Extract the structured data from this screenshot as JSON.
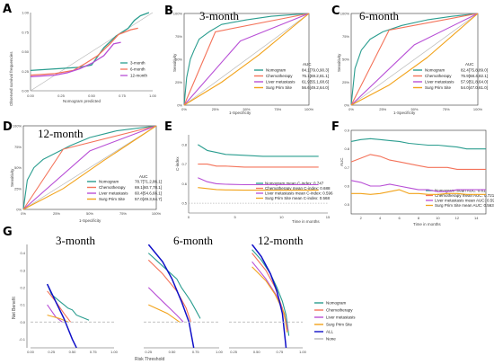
{
  "panel_labels": [
    "A",
    "B",
    "C",
    "D",
    "E",
    "F",
    "G"
  ],
  "colors": {
    "teal": "#2a9d8f",
    "salmon": "#f4735a",
    "magenta": "#b84fd6",
    "orange": "#f2a31b",
    "blue": "#1010c8",
    "grey": "#b8b8b8",
    "purple": "#8a2be2"
  },
  "chart_data": [
    {
      "id": "A",
      "type": "line",
      "xlabel": "Nomogram predicted",
      "ylabel": "Observed survival frequencies",
      "xlim": [
        0,
        1
      ],
      "ylim": [
        0,
        1
      ],
      "xticks": [
        "0.00",
        "0.25",
        "0.50",
        "0.75",
        "1.00"
      ],
      "yticks": [
        "0.00",
        "0.25",
        "0.50",
        "0.75",
        "1.00"
      ],
      "legend_position": "right",
      "series": [
        {
          "name": "3-month",
          "color": "teal",
          "x": [
            0.0,
            0.2,
            0.4,
            0.5,
            0.6,
            0.7,
            0.8,
            0.85,
            0.9,
            0.97
          ],
          "y": [
            0.26,
            0.28,
            0.3,
            0.33,
            0.55,
            0.7,
            0.8,
            0.9,
            0.96,
            1.0
          ]
        },
        {
          "name": "6-month",
          "color": "salmon",
          "x": [
            0.0,
            0.2,
            0.35,
            0.45,
            0.55,
            0.65,
            0.72,
            0.82,
            0.88
          ],
          "y": [
            0.2,
            0.22,
            0.26,
            0.35,
            0.45,
            0.6,
            0.72,
            0.78,
            0.8
          ]
        },
        {
          "name": "12-month",
          "color": "magenta",
          "x": [
            0.0,
            0.2,
            0.3,
            0.4,
            0.5,
            0.6,
            0.68,
            0.74
          ],
          "y": [
            0.18,
            0.2,
            0.23,
            0.28,
            0.35,
            0.45,
            0.6,
            0.62
          ]
        }
      ]
    },
    {
      "id": "B",
      "type": "line",
      "title": "3-month",
      "xlabel": "1-Specificity",
      "ylabel": "Sensitivity",
      "xticks": [
        "0%",
        "25%",
        "50%",
        "75%",
        "100%"
      ],
      "yticks": [
        "0%",
        "25%",
        "50%",
        "75%",
        "100%"
      ],
      "legend_header": "AUC",
      "series": [
        {
          "name": "Nomogram",
          "auc": "84.1[79.0,90.3]",
          "color": "teal",
          "x": [
            0,
            0.02,
            0.05,
            0.08,
            0.12,
            0.2,
            0.3,
            0.5,
            0.7,
            1
          ],
          "y": [
            0,
            0.3,
            0.5,
            0.6,
            0.72,
            0.8,
            0.88,
            0.93,
            0.97,
            1
          ]
        },
        {
          "name": "Chemotherapy",
          "auc": "75.1[69.2,81.1]",
          "color": "salmon",
          "x": [
            0,
            0.25,
            1
          ],
          "y": [
            0,
            0.8,
            1
          ]
        },
        {
          "name": "Liver metastasis",
          "auc": "61.9[55.1,68.6]",
          "color": "magenta",
          "x": [
            0,
            0.45,
            1
          ],
          "y": [
            0,
            0.7,
            1
          ]
        },
        {
          "name": "Surg Prim Site",
          "auc": "56.6[49.2,64.0]",
          "color": "orange",
          "x": [
            0,
            0.3,
            0.6,
            1
          ],
          "y": [
            0,
            0.25,
            0.55,
            1
          ]
        }
      ]
    },
    {
      "id": "C",
      "type": "line",
      "title": "6-month",
      "xlabel": "1-Specificity",
      "ylabel": "Sensitivity",
      "xticks": [
        "0%",
        "25%",
        "50%",
        "75%",
        "100%"
      ],
      "yticks": [
        "0%",
        "25%",
        "50%",
        "75%",
        "100%"
      ],
      "legend_header": "AUC",
      "series": [
        {
          "name": "Nomogram",
          "auc": "82.4[75.8,89.0]",
          "color": "teal",
          "x": [
            0,
            0.03,
            0.08,
            0.15,
            0.25,
            0.4,
            0.6,
            0.8,
            1
          ],
          "y": [
            0,
            0.4,
            0.6,
            0.72,
            0.8,
            0.87,
            0.93,
            0.97,
            1
          ]
        },
        {
          "name": "Chemotherapy",
          "auc": "75.9[68.4,82.1]",
          "color": "salmon",
          "x": [
            0,
            0.3,
            1
          ],
          "y": [
            0,
            0.82,
            1
          ]
        },
        {
          "name": "Liver metastasis",
          "auc": "57.9[51.8,64.0]",
          "color": "magenta",
          "x": [
            0,
            0.5,
            1
          ],
          "y": [
            0,
            0.66,
            1
          ]
        },
        {
          "name": "Surg Prim Site",
          "auc": "54.0[47.0,61.0]",
          "color": "orange",
          "x": [
            0,
            0.3,
            0.6,
            1
          ],
          "y": [
            0,
            0.22,
            0.52,
            1
          ]
        }
      ]
    },
    {
      "id": "D",
      "type": "line",
      "title": "12-month",
      "xlabel": "1-Specificity",
      "ylabel": "Sensitivity",
      "xticks": [
        "0%",
        "25%",
        "50%",
        "75%",
        "100%"
      ],
      "yticks": [
        "0%",
        "25%",
        "50%",
        "75%",
        "100%"
      ],
      "legend_header": "AUC",
      "series": [
        {
          "name": "Nomogram",
          "auc": "78.7[71.2,86.1]",
          "color": "teal",
          "x": [
            0,
            0.03,
            0.08,
            0.15,
            0.25,
            0.35,
            0.5,
            0.7,
            1
          ],
          "y": [
            0,
            0.35,
            0.5,
            0.6,
            0.68,
            0.76,
            0.86,
            0.94,
            1
          ]
        },
        {
          "name": "Chemotherapy",
          "auc": "69.1[60.7,78.1]",
          "color": "salmon",
          "x": [
            0,
            0.3,
            1
          ],
          "y": [
            0,
            0.72,
            1
          ]
        },
        {
          "name": "Liver metastasis",
          "auc": "60.4[54.6,66.1]",
          "color": "magenta",
          "x": [
            0,
            0.5,
            1
          ],
          "y": [
            0,
            0.7,
            1
          ]
        },
        {
          "name": "Surg Prim Site",
          "auc": "57.0[49.3,64.7]",
          "color": "orange",
          "x": [
            0,
            0.3,
            0.6,
            1
          ],
          "y": [
            0,
            0.25,
            0.58,
            1
          ]
        }
      ]
    },
    {
      "id": "E",
      "type": "line",
      "xlabel": "Time in months",
      "ylabel": "C-index",
      "xlim": [
        0,
        15
      ],
      "ylim": [
        0.45,
        0.85
      ],
      "xticks": [
        "0",
        "5",
        "10",
        "15"
      ],
      "yticks": [
        "0.5",
        "0.6",
        "0.7",
        "0.8"
      ],
      "series": [
        {
          "name": "Nomogram mean C-index: 0.747",
          "color": "teal",
          "x": [
            1,
            2,
            3,
            4,
            6,
            8,
            10,
            12,
            14
          ],
          "y": [
            0.8,
            0.77,
            0.76,
            0.75,
            0.745,
            0.74,
            0.74,
            0.74,
            0.74
          ]
        },
        {
          "name": "Chemotherapy mean C-index: 0.688",
          "color": "salmon",
          "x": [
            1,
            2,
            3,
            4,
            6,
            8,
            10,
            12,
            14
          ],
          "y": [
            0.7,
            0.7,
            0.69,
            0.69,
            0.685,
            0.685,
            0.685,
            0.685,
            0.685
          ]
        },
        {
          "name": "Liver metastasis mean C-index: 0.596",
          "color": "magenta",
          "x": [
            1,
            2,
            3,
            4,
            6,
            8,
            10,
            12,
            14
          ],
          "y": [
            0.63,
            0.61,
            0.6,
            0.597,
            0.595,
            0.595,
            0.595,
            0.595,
            0.595
          ]
        },
        {
          "name": "Surg Prim Site mean C-index: 0.568",
          "color": "orange",
          "x": [
            1,
            2,
            3,
            4,
            6,
            8,
            10,
            12,
            14
          ],
          "y": [
            0.58,
            0.575,
            0.57,
            0.568,
            0.567,
            0.567,
            0.567,
            0.567,
            0.567
          ]
        }
      ],
      "reference": {
        "y": 0.5,
        "color": "grey"
      }
    },
    {
      "id": "F",
      "type": "line",
      "xlabel": "Time in months",
      "ylabel": "AUC",
      "xlim": [
        1,
        15
      ],
      "ylim": [
        0.45,
        0.9
      ],
      "xticks": [
        "2",
        "4",
        "6",
        "8",
        "10",
        "12",
        "14"
      ],
      "yticks": [
        "0.5",
        "0.6",
        "0.7",
        "0.8",
        "0.9"
      ],
      "series": [
        {
          "name": "Nomogram mean AUC: 0.81",
          "color": "teal",
          "x": [
            1,
            2,
            3,
            4,
            5,
            6,
            7,
            8,
            9,
            10,
            11,
            12,
            13,
            14,
            15
          ],
          "y": [
            0.84,
            0.85,
            0.855,
            0.85,
            0.845,
            0.84,
            0.83,
            0.825,
            0.82,
            0.82,
            0.815,
            0.81,
            0.8,
            0.8,
            0.8
          ]
        },
        {
          "name": "Chemotherapy mean AUC: 0.721",
          "color": "salmon",
          "x": [
            1,
            2,
            3,
            4,
            5,
            6,
            7,
            8,
            9,
            10,
            11,
            12,
            13,
            14,
            15
          ],
          "y": [
            0.73,
            0.75,
            0.77,
            0.76,
            0.74,
            0.73,
            0.72,
            0.71,
            0.7,
            0.7,
            0.7,
            0.69,
            0.69,
            0.69,
            0.69
          ]
        },
        {
          "name": "Liver metastasis mean AUC: 0.591",
          "color": "magenta",
          "x": [
            1,
            2,
            3,
            4,
            5,
            6,
            7,
            8,
            9,
            10,
            11,
            12,
            13,
            14,
            15
          ],
          "y": [
            0.63,
            0.62,
            0.6,
            0.6,
            0.61,
            0.6,
            0.59,
            0.58,
            0.58,
            0.57,
            0.57,
            0.58,
            0.58,
            0.58,
            0.58
          ]
        },
        {
          "name": "Surg Prim Site mean AUC: 0.563",
          "color": "orange",
          "x": [
            1,
            2,
            3,
            4,
            5,
            6,
            7,
            8,
            9,
            10,
            11,
            12,
            13,
            14,
            15
          ],
          "y": [
            0.56,
            0.56,
            0.555,
            0.56,
            0.57,
            0.58,
            0.56,
            0.56,
            0.555,
            0.555,
            0.56,
            0.56,
            0.555,
            0.555,
            0.555
          ]
        }
      ]
    },
    {
      "id": "G",
      "type": "line",
      "xlabel": "Risk Threshold",
      "ylabel": "Net Benefit",
      "ylim": [
        -0.15,
        0.45
      ],
      "yticks": [
        "-0.1",
        "0.0",
        "0.1",
        "0.2",
        "0.3",
        "0.4"
      ],
      "legend": [
        "Nomogram",
        "Chemotherapy",
        "Liver metastasis",
        "Surg Prim Site",
        "ALL",
        "None"
      ],
      "legend_colors": [
        "teal",
        "salmon",
        "magenta",
        "orange",
        "blue",
        "grey"
      ],
      "subpanels": [
        {
          "title": "3-month",
          "xticks": [
            "0.00",
            "0.25",
            "0.50",
            "0.75",
            "1.00"
          ],
          "series": {
            "Nomogram": {
              "x": [
                0.2,
                0.25,
                0.3,
                0.35,
                0.4,
                0.45,
                0.5,
                0.55,
                0.6,
                0.65,
                0.7
              ],
              "y": [
                0.22,
                0.16,
                0.14,
                0.12,
                0.1,
                0.08,
                0.07,
                0.04,
                0.03,
                0.02,
                0.01
              ]
            },
            "Chemotherapy": {
              "x": [
                0.2,
                0.3,
                0.4,
                0.48
              ],
              "y": [
                0.18,
                0.12,
                0.05,
                0.0
              ]
            },
            "Liver metastasis": {
              "x": [
                0.2,
                0.3,
                0.38
              ],
              "y": [
                0.1,
                0.03,
                0.0
              ]
            },
            "Surg Prim Site": {
              "x": [
                0.2,
                0.35,
                0.45
              ],
              "y": [
                0.04,
                0.02,
                0.0
              ]
            },
            "ALL": {
              "x": [
                0.2,
                0.3,
                0.4,
                0.5,
                0.55
              ],
              "y": [
                0.22,
                0.12,
                0.02,
                -0.1,
                -0.15
              ]
            },
            "None": {
              "x": [
                0.0,
                1.0
              ],
              "y": [
                0,
                0
              ]
            }
          }
        },
        {
          "title": "6-month",
          "xticks": [
            "0.25",
            "0.50",
            "0.75",
            "1.00"
          ],
          "series": {
            "Nomogram": {
              "x": [
                0.25,
                0.35,
                0.45,
                0.55,
                0.6,
                0.65,
                0.7,
                0.75,
                0.8
              ],
              "y": [
                0.4,
                0.35,
                0.3,
                0.25,
                0.2,
                0.16,
                0.12,
                0.07,
                0.02
              ]
            },
            "Chemotherapy": {
              "x": [
                0.25,
                0.4,
                0.55,
                0.65,
                0.7
              ],
              "y": [
                0.36,
                0.28,
                0.18,
                0.08,
                0.0
              ]
            },
            "Liver metastasis": {
              "x": [
                0.25,
                0.4,
                0.55,
                0.62
              ],
              "y": [
                0.2,
                0.12,
                0.04,
                0.0
              ]
            },
            "Surg Prim Site": {
              "x": [
                0.25,
                0.45,
                0.58
              ],
              "y": [
                0.1,
                0.05,
                0.0
              ]
            },
            "ALL": {
              "x": [
                0.25,
                0.4,
                0.5,
                0.6,
                0.68,
                0.73
              ],
              "y": [
                0.45,
                0.35,
                0.25,
                0.12,
                0.0,
                -0.15
              ]
            },
            "None": {
              "x": [
                0.2,
                1.0
              ],
              "y": [
                0,
                0
              ]
            }
          }
        },
        {
          "title": "12-month",
          "xticks": [
            "0.25",
            "0.50",
            "0.75",
            "1.00"
          ],
          "series": {
            "Nomogram": {
              "x": [
                0.45,
                0.55,
                0.65,
                0.72,
                0.78,
                0.82,
                0.85
              ],
              "y": [
                0.42,
                0.36,
                0.28,
                0.2,
                0.12,
                0.04,
                -0.08
              ]
            },
            "Chemotherapy": {
              "x": [
                0.45,
                0.6,
                0.7,
                0.78,
                0.84
              ],
              "y": [
                0.4,
                0.3,
                0.2,
                0.08,
                -0.05
              ]
            },
            "Liver metastasis": {
              "x": [
                0.45,
                0.6,
                0.72,
                0.8,
                0.84
              ],
              "y": [
                0.35,
                0.25,
                0.15,
                0.05,
                -0.05
              ]
            },
            "Surg Prim Site": {
              "x": [
                0.45,
                0.6,
                0.7,
                0.8,
                0.83
              ],
              "y": [
                0.32,
                0.24,
                0.16,
                0.05,
                -0.06
              ]
            },
            "ALL": {
              "x": [
                0.45,
                0.55,
                0.65,
                0.72,
                0.78,
                0.82
              ],
              "y": [
                0.45,
                0.38,
                0.28,
                0.18,
                0.05,
                -0.15
              ]
            },
            "None": {
              "x": [
                0.2,
                1.0
              ],
              "y": [
                0,
                0
              ]
            }
          }
        }
      ]
    }
  ]
}
